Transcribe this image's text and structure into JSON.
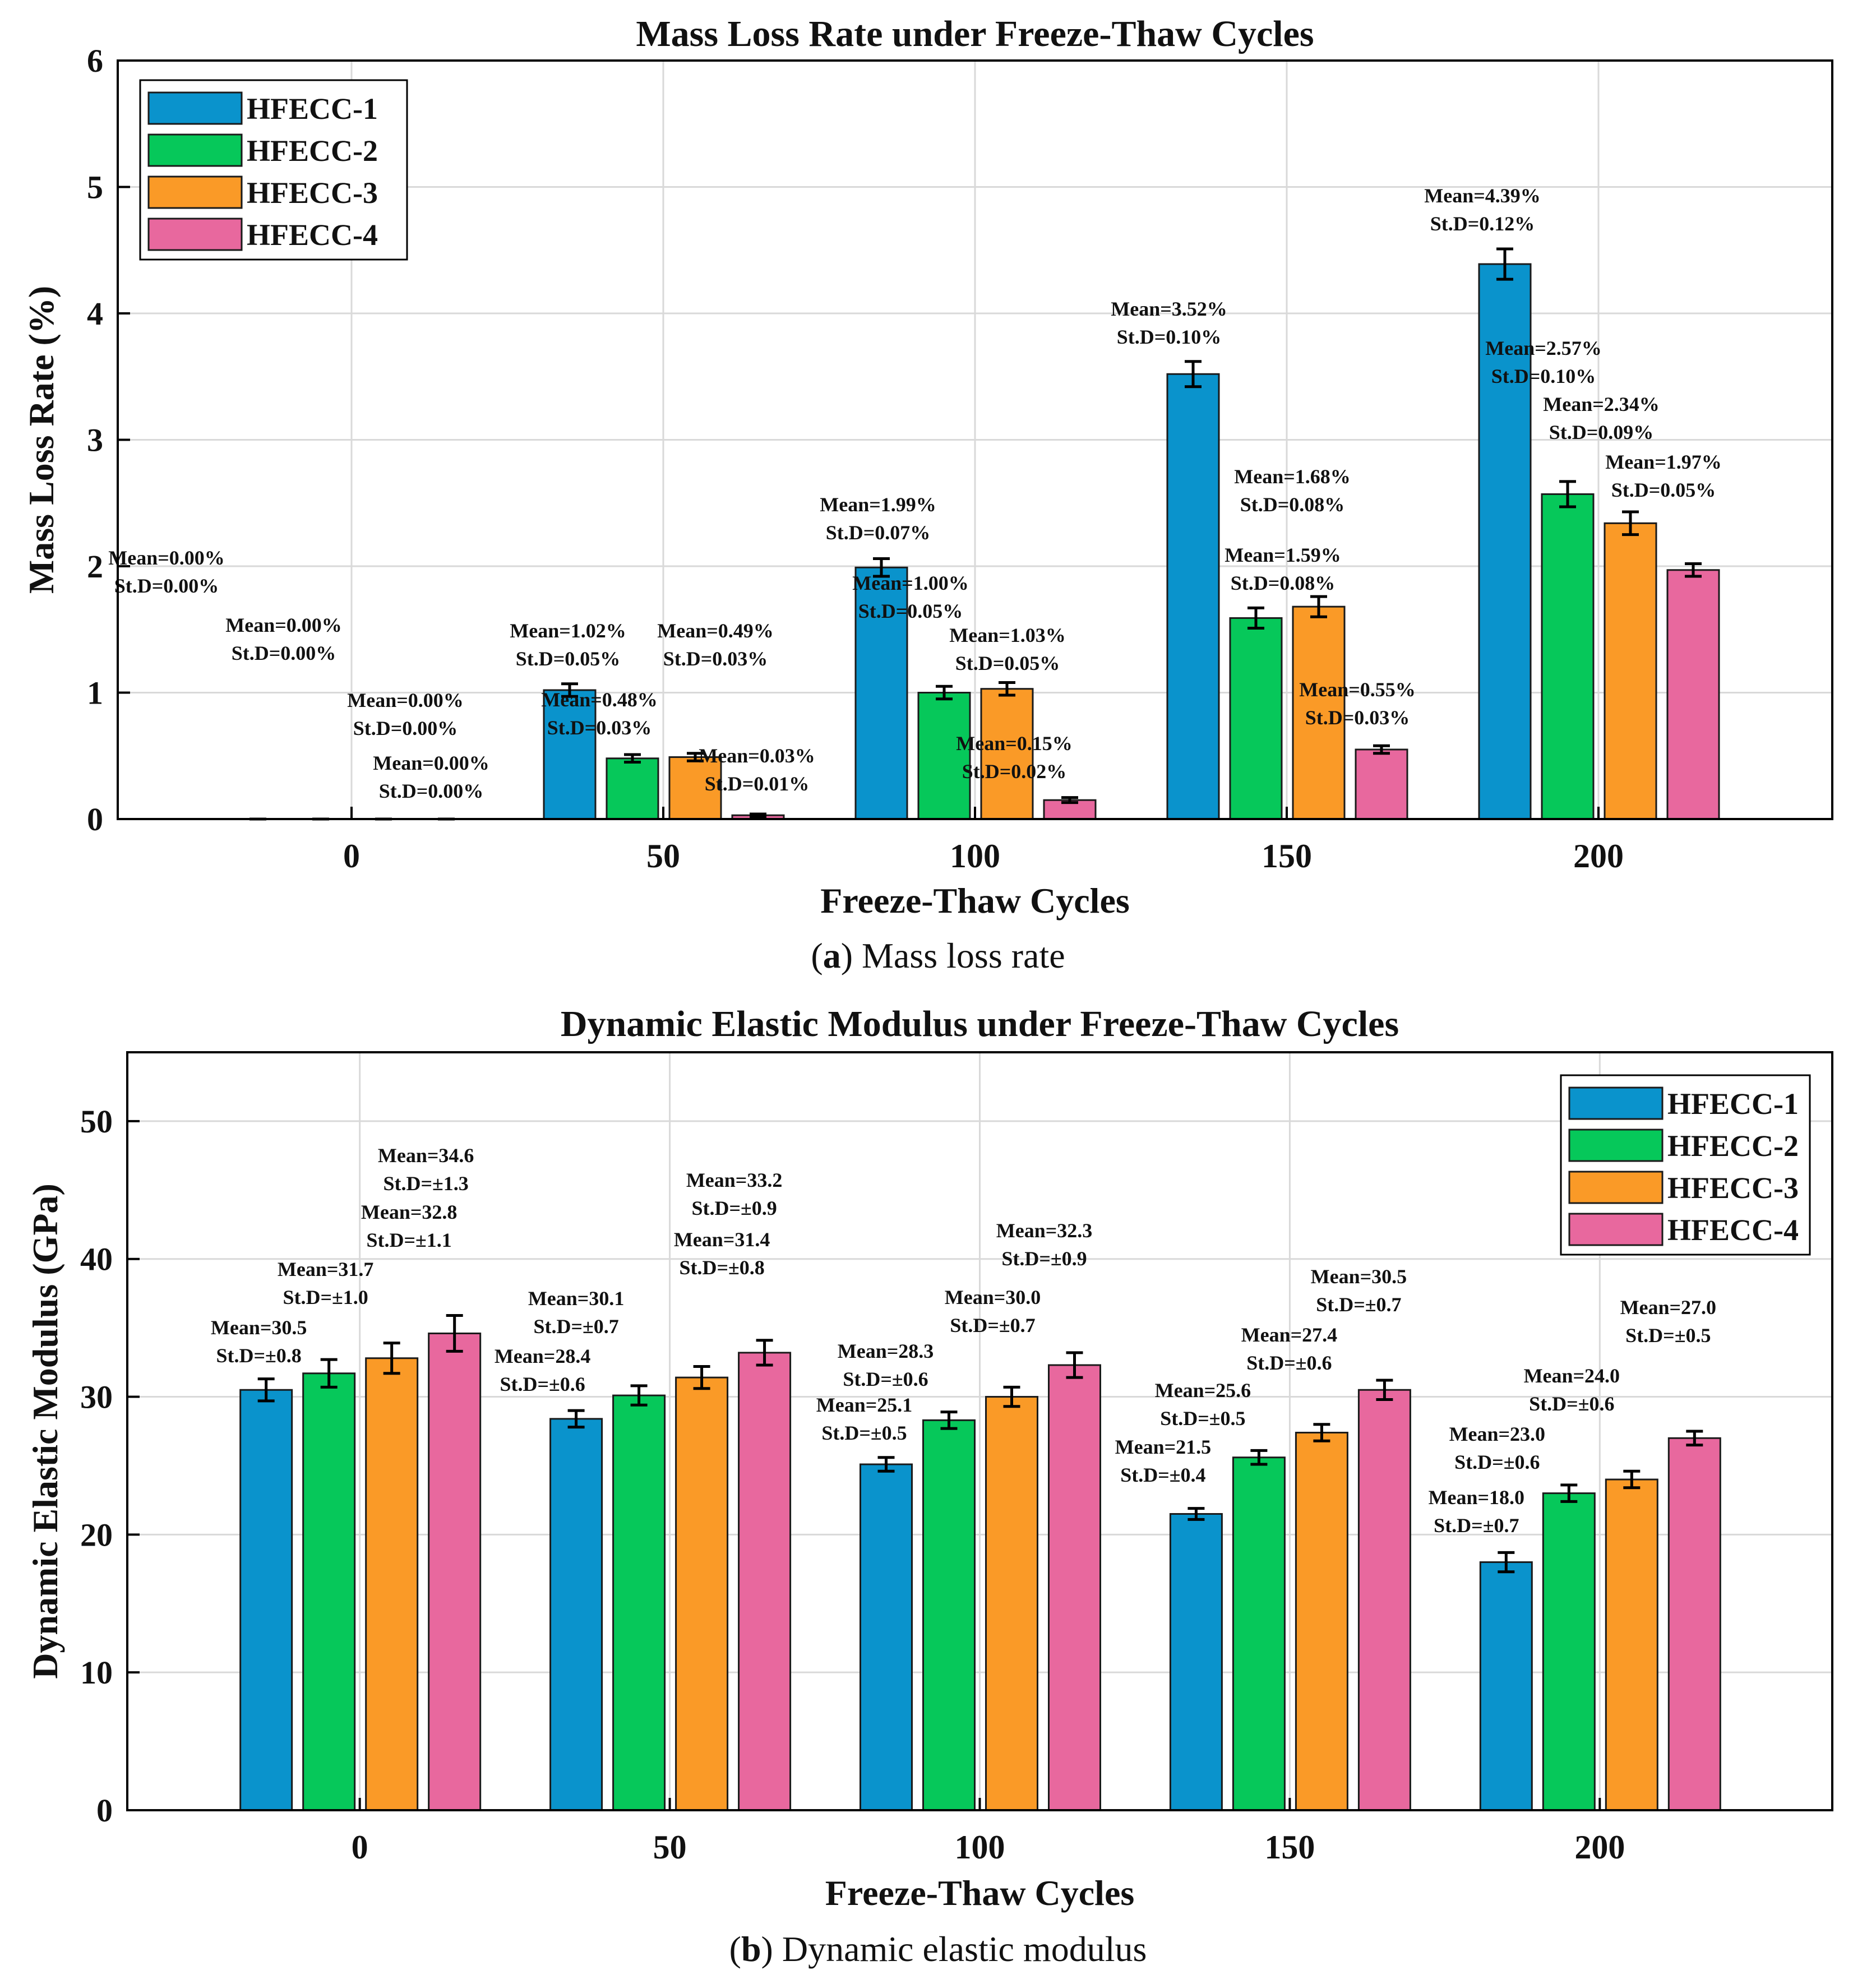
{
  "colors": {
    "HFECC-1": "#0a93cc",
    "HFECC-2": "#06c85a",
    "HFECC-3": "#fa9a27",
    "HFECC-4": "#e8689e",
    "bar_edge": "#1a1a1a",
    "grid": "#d9d9d9"
  },
  "captions": [
    {
      "id": "a",
      "letter": "a",
      "text": "Mass loss rate"
    },
    {
      "id": "b",
      "letter": "b",
      "text": "Dynamic elastic modulus"
    }
  ],
  "chart_data": [
    {
      "type": "bar",
      "title": "Mass Loss Rate under Freeze-Thaw Cycles",
      "xlabel": "Freeze-Thaw Cycles",
      "ylabel": "Mass Loss Rate (%)",
      "categories": [
        "0",
        "50",
        "100",
        "150",
        "200"
      ],
      "ylim": [
        0,
        6
      ],
      "yticks": [
        "0",
        "1",
        "2",
        "3",
        "4",
        "5",
        "6"
      ],
      "grid": true,
      "legend_position": "top-left",
      "series": [
        {
          "name": "HFECC-1",
          "values": [
            0,
            1.02,
            1.99,
            3.52,
            4.39
          ],
          "errors": [
            0,
            0.05,
            0.07,
            0.1,
            0.12
          ],
          "labels": [
            [
              "Mean=0.00%",
              "St.D=0.00%"
            ],
            [
              "Mean=1.02%",
              "St.D=0.05%"
            ],
            [
              "Mean=1.99%",
              "St.D=0.07%"
            ],
            [
              "Mean=3.52%",
              "St.D=0.10%"
            ],
            [
              "Mean=4.39%",
              "St.D=0.12%"
            ]
          ]
        },
        {
          "name": "HFECC-2",
          "values": [
            0,
            0.48,
            1.0,
            1.59,
            2.57
          ],
          "errors": [
            0,
            0.03,
            0.05,
            0.08,
            0.1
          ],
          "labels": [
            [
              "Mean=0.00%",
              "St.D=0.00%"
            ],
            [
              "Mean=0.48%",
              "St.D=0.03%"
            ],
            [
              "Mean=1.00%",
              "St.D=0.05%"
            ],
            [
              "Mean=1.59%",
              "St.D=0.08%"
            ],
            [
              "Mean=2.57%",
              "St.D=0.10%"
            ]
          ]
        },
        {
          "name": "HFECC-3",
          "values": [
            0,
            0.49,
            1.03,
            1.68,
            2.34
          ],
          "errors": [
            0,
            0.03,
            0.05,
            0.08,
            0.09
          ],
          "labels": [
            [
              "Mean=0.00%",
              "St.D=0.00%"
            ],
            [
              "Mean=0.49%",
              "St.D=0.03%"
            ],
            [
              "Mean=1.03%",
              "St.D=0.05%"
            ],
            [
              "Mean=1.68%",
              "St.D=0.08%"
            ],
            [
              "Mean=2.34%",
              "St.D=0.09%"
            ]
          ]
        },
        {
          "name": "HFECC-4",
          "values": [
            0,
            0.03,
            0.15,
            0.55,
            1.97
          ],
          "errors": [
            0,
            0.01,
            0.02,
            0.03,
            0.05
          ],
          "labels": [
            [
              "Mean=0.00%",
              "St.D=0.00%"
            ],
            [
              "Mean=0.03%",
              "St.D=0.01%"
            ],
            [
              "Mean=0.15%",
              "St.D=0.02%"
            ],
            [
              "Mean=0.55%",
              "St.D=0.03%"
            ],
            [
              "Mean=1.97%",
              "St.D=0.05%"
            ]
          ]
        }
      ]
    },
    {
      "type": "bar",
      "title": "Dynamic Elastic Modulus under Freeze-Thaw Cycles",
      "xlabel": "Freeze-Thaw Cycles",
      "ylabel": "Dynamic Elastic Modulus (GPa)",
      "categories": [
        "0",
        "50",
        "100",
        "150",
        "200"
      ],
      "ylim": [
        0,
        55
      ],
      "yticks": [
        "0",
        "10",
        "20",
        "30",
        "40",
        "50"
      ],
      "grid": true,
      "legend_position": "top-right",
      "series": [
        {
          "name": "HFECC-1",
          "values": [
            30.5,
            28.4,
            25.1,
            21.5,
            18.0
          ],
          "errors": [
            0.8,
            0.6,
            0.5,
            0.4,
            0.7
          ],
          "labels": [
            [
              "Mean=30.5",
              "St.D=±0.8"
            ],
            [
              "Mean=28.4",
              "St.D=±0.6"
            ],
            [
              "Mean=25.1",
              "St.D=±0.5"
            ],
            [
              "Mean=21.5",
              "St.D=±0.4"
            ],
            [
              "Mean=18.0",
              "St.D=±0.7"
            ]
          ]
        },
        {
          "name": "HFECC-2",
          "values": [
            31.7,
            30.1,
            28.3,
            25.6,
            23.0
          ],
          "errors": [
            1.0,
            0.7,
            0.6,
            0.5,
            0.6
          ],
          "labels": [
            [
              "Mean=31.7",
              "St.D=±1.0"
            ],
            [
              "Mean=30.1",
              "St.D=±0.7"
            ],
            [
              "Mean=28.3",
              "St.D=±0.6"
            ],
            [
              "Mean=25.6",
              "St.D=±0.5"
            ],
            [
              "Mean=23.0",
              "St.D=±0.6"
            ]
          ]
        },
        {
          "name": "HFECC-3",
          "values": [
            32.8,
            31.4,
            30.0,
            27.4,
            24.0
          ],
          "errors": [
            1.1,
            0.8,
            0.7,
            0.6,
            0.6
          ],
          "labels": [
            [
              "Mean=32.8",
              "St.D=±1.1"
            ],
            [
              "Mean=31.4",
              "St.D=±0.8"
            ],
            [
              "Mean=30.0",
              "St.D=±0.7"
            ],
            [
              "Mean=27.4",
              "St.D=±0.6"
            ],
            [
              "Mean=24.0",
              "St.D=±0.6"
            ]
          ]
        },
        {
          "name": "HFECC-4",
          "values": [
            34.6,
            33.2,
            32.3,
            30.5,
            27.0
          ],
          "errors": [
            1.3,
            0.9,
            0.9,
            0.7,
            0.5
          ],
          "labels": [
            [
              "Mean=34.6",
              "St.D=±1.3"
            ],
            [
              "Mean=33.2",
              "St.D=±0.9"
            ],
            [
              "Mean=32.3",
              "St.D=±0.9"
            ],
            [
              "Mean=30.5",
              "St.D=±0.7"
            ],
            [
              "Mean=27.0",
              "St.D=±0.5"
            ]
          ]
        }
      ]
    }
  ]
}
